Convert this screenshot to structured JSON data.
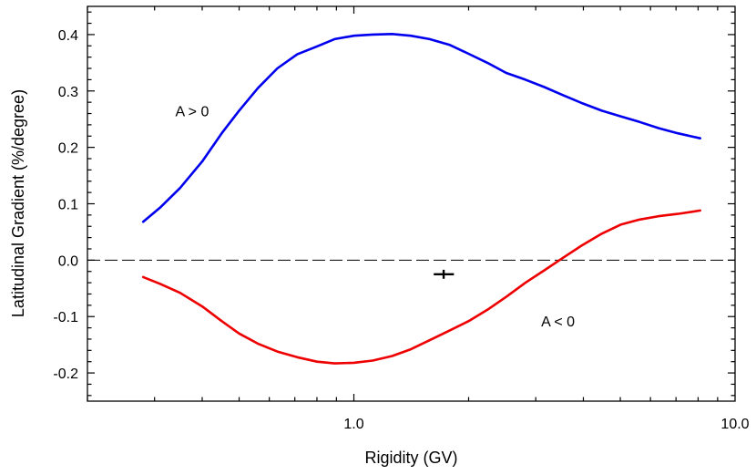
{
  "chart_data": {
    "type": "line",
    "xlabel": "Rigidity (GV)",
    "ylabel": "Latitudinal Gradient (%/degree)",
    "x_scale": "log",
    "xlim": [
      0.2,
      10.0
    ],
    "ylim": [
      -0.25,
      0.45
    ],
    "x_ticks": [
      {
        "value": 1.0,
        "label": "1.0"
      },
      {
        "value": 10.0,
        "label": "10.0"
      }
    ],
    "y_ticks": [
      {
        "value": 0.4,
        "label": "0.4"
      },
      {
        "value": 0.3,
        "label": "0.3"
      },
      {
        "value": 0.2,
        "label": "0.2"
      },
      {
        "value": 0.1,
        "label": "0.1"
      },
      {
        "value": 0.0,
        "label": "0.0"
      },
      {
        "value": -0.1,
        "label": "-0.1"
      },
      {
        "value": -0.2,
        "label": "-0.2"
      }
    ],
    "grid": false,
    "zero_line": {
      "y": 0.0,
      "style": "dashed",
      "color": "#000000"
    },
    "series": [
      {
        "color": "#0000ee",
        "points": [
          [
            0.28,
            0.068
          ],
          [
            0.31,
            0.093
          ],
          [
            0.35,
            0.128
          ],
          [
            0.4,
            0.175
          ],
          [
            0.45,
            0.225
          ],
          [
            0.5,
            0.265
          ],
          [
            0.56,
            0.305
          ],
          [
            0.63,
            0.34
          ],
          [
            0.71,
            0.365
          ],
          [
            0.8,
            0.379
          ],
          [
            0.89,
            0.392
          ],
          [
            1.0,
            0.398
          ],
          [
            1.12,
            0.4
          ],
          [
            1.26,
            0.401
          ],
          [
            1.41,
            0.398
          ],
          [
            1.58,
            0.392
          ],
          [
            1.78,
            0.382
          ],
          [
            2.0,
            0.366
          ],
          [
            2.24,
            0.35
          ],
          [
            2.51,
            0.332
          ],
          [
            2.82,
            0.32
          ],
          [
            3.16,
            0.307
          ],
          [
            3.55,
            0.292
          ],
          [
            3.98,
            0.278
          ],
          [
            4.47,
            0.265
          ],
          [
            5.01,
            0.255
          ],
          [
            5.62,
            0.245
          ],
          [
            6.31,
            0.234
          ],
          [
            7.08,
            0.225
          ],
          [
            8.1,
            0.216
          ]
        ]
      },
      {
        "color": "#ee0000",
        "points": [
          [
            0.28,
            -0.03
          ],
          [
            0.31,
            -0.042
          ],
          [
            0.35,
            -0.058
          ],
          [
            0.4,
            -0.082
          ],
          [
            0.45,
            -0.108
          ],
          [
            0.5,
            -0.13
          ],
          [
            0.56,
            -0.148
          ],
          [
            0.63,
            -0.162
          ],
          [
            0.71,
            -0.172
          ],
          [
            0.8,
            -0.18
          ],
          [
            0.89,
            -0.183
          ],
          [
            1.0,
            -0.182
          ],
          [
            1.12,
            -0.178
          ],
          [
            1.26,
            -0.17
          ],
          [
            1.41,
            -0.158
          ],
          [
            1.58,
            -0.142
          ],
          [
            1.78,
            -0.125
          ],
          [
            2.0,
            -0.108
          ],
          [
            2.24,
            -0.088
          ],
          [
            2.51,
            -0.065
          ],
          [
            2.82,
            -0.04
          ],
          [
            3.16,
            -0.018
          ],
          [
            3.55,
            0.005
          ],
          [
            3.98,
            0.027
          ],
          [
            4.47,
            0.047
          ],
          [
            5.01,
            0.063
          ],
          [
            5.62,
            0.072
          ],
          [
            6.31,
            0.078
          ],
          [
            7.08,
            0.082
          ],
          [
            8.1,
            0.088
          ]
        ]
      }
    ],
    "data_point": {
      "x": 1.72,
      "y": -0.025,
      "x_err": [
        1.62,
        1.83
      ],
      "y_err": 0.008
    },
    "annotations": [
      {
        "text": "A > 0",
        "x": 0.34,
        "y": 0.265
      },
      {
        "text": "A < 0",
        "x": 3.1,
        "y": -0.108
      }
    ]
  }
}
